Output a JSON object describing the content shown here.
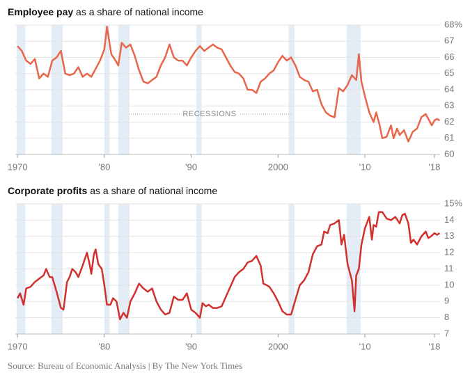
{
  "chart_data": [
    {
      "type": "line",
      "title": "Employee pay",
      "subtitle": "as a share of national income",
      "color": "#e8664a",
      "annotation": "RECESSIONS",
      "x": [
        1970,
        1970.5,
        1971,
        1971.5,
        1972,
        1972.5,
        1973,
        1973.5,
        1974,
        1974.5,
        1975,
        1975.5,
        1976,
        1976.5,
        1977,
        1977.5,
        1978,
        1978.5,
        1979,
        1979.5,
        1980,
        1980.3,
        1980.8,
        1981.3,
        1981.6,
        1982,
        1982.5,
        1983,
        1983.5,
        1984,
        1984.5,
        1985,
        1985.5,
        1986,
        1986.5,
        1987,
        1987.5,
        1988,
        1988.5,
        1989,
        1989.5,
        1990,
        1990.5,
        1991,
        1991.5,
        1992,
        1992.5,
        1993,
        1993.5,
        1994,
        1994.5,
        1995,
        1995.5,
        1996,
        1996.5,
        1997,
        1997.5,
        1998,
        1998.5,
        1999,
        1999.5,
        2000,
        2000.5,
        2001,
        2001.5,
        2002,
        2002.5,
        2003,
        2003.5,
        2004,
        2004.5,
        2005,
        2005.5,
        2006,
        2006.5,
        2007,
        2007.5,
        2008,
        2008.5,
        2009,
        2009.3,
        2009.6,
        2010,
        2010.5,
        2011,
        2011.3,
        2011.7,
        2012,
        2012.5,
        2013,
        2013.3,
        2013.7,
        2014,
        2014.5,
        2015,
        2015.5,
        2016,
        2016.5,
        2017,
        2017.3,
        2017.7,
        2018,
        2018.3,
        2018.6
      ],
      "values": [
        66.7,
        66.4,
        65.8,
        65.6,
        65.9,
        64.7,
        65.0,
        64.8,
        65.8,
        66.0,
        66.4,
        65.0,
        64.9,
        65.0,
        65.4,
        64.8,
        65.0,
        64.8,
        65.3,
        65.8,
        66.5,
        67.9,
        66.2,
        65.8,
        65.5,
        66.9,
        66.6,
        66.8,
        66.1,
        65.2,
        64.5,
        64.4,
        64.6,
        64.8,
        65.5,
        66.0,
        66.8,
        66.0,
        65.8,
        65.8,
        65.5,
        66.0,
        66.4,
        66.7,
        66.4,
        66.6,
        66.8,
        66.6,
        66.5,
        66.0,
        65.5,
        65.1,
        65.0,
        64.7,
        64.0,
        64.0,
        63.8,
        64.5,
        64.7,
        65.0,
        65.2,
        65.7,
        66.1,
        65.8,
        66.0,
        65.5,
        64.8,
        64.6,
        64.5,
        63.9,
        64.0,
        63.1,
        62.6,
        62.4,
        62.3,
        64.1,
        63.9,
        64.3,
        64.9,
        64.6,
        66.2,
        64.5,
        63.6,
        62.6,
        62.0,
        62.6,
        61.8,
        61.0,
        61.1,
        61.8,
        61.0,
        61.6,
        61.2,
        61.5,
        60.8,
        61.4,
        61.6,
        62.3,
        62.5,
        62.2,
        61.8,
        62.1,
        62.2,
        62.1
      ],
      "recessions": [
        [
          1969.9,
          1970.9
        ],
        [
          1973.9,
          1975.2
        ],
        [
          1980.0,
          1980.6
        ],
        [
          1981.6,
          1982.9
        ],
        [
          1990.6,
          1991.2
        ],
        [
          2001.2,
          2001.9
        ],
        [
          2007.9,
          2009.5
        ]
      ],
      "xlim": [
        1969.75,
        2018.65
      ],
      "xticks": [
        {
          "value": 1970,
          "label": "1970"
        },
        {
          "value": 1980,
          "label": "'80"
        },
        {
          "value": 1990,
          "label": "'90"
        },
        {
          "value": 2000,
          "label": "2000"
        },
        {
          "value": 2010,
          "label": "'10"
        },
        {
          "value": 2018,
          "label": "'18"
        }
      ],
      "ylim": [
        60,
        68
      ],
      "yticks": [
        60,
        61,
        62,
        63,
        64,
        65,
        66,
        67,
        {
          "value": 68,
          "label": "68%"
        }
      ],
      "grid": true
    },
    {
      "type": "line",
      "title": "Corporate profits",
      "subtitle": "as a share of national income",
      "color": "#d0312d",
      "x": [
        1970,
        1970.3,
        1970.7,
        1971,
        1971.5,
        1972,
        1972.5,
        1973,
        1973.3,
        1973.7,
        1974,
        1974.5,
        1975,
        1975.3,
        1975.7,
        1976,
        1976.3,
        1976.7,
        1977,
        1977.5,
        1978,
        1978.3,
        1978.5,
        1978.8,
        1979,
        1979.3,
        1979.7,
        1980,
        1980.3,
        1980.7,
        1981,
        1981.4,
        1981.8,
        1982.2,
        1982.6,
        1983,
        1983.5,
        1984,
        1984.5,
        1985,
        1985.5,
        1986,
        1986.5,
        1987,
        1987.5,
        1988,
        1988.5,
        1989,
        1989.5,
        1990,
        1990.5,
        1991,
        1991.3,
        1991.7,
        1992,
        1992.5,
        1993,
        1993.5,
        1994,
        1994.5,
        1995,
        1995.5,
        1996,
        1996.5,
        1997,
        1997.5,
        1998,
        1998.3,
        1998.7,
        1999,
        1999.5,
        2000,
        2000.5,
        2001,
        2001.5,
        2002,
        2002.5,
        2003,
        2003.5,
        2004,
        2004.5,
        2005,
        2005.3,
        2005.7,
        2006,
        2006.5,
        2007,
        2007.3,
        2007.6,
        2008,
        2008.5,
        2008.8,
        2009,
        2009.3,
        2009.6,
        2010,
        2010.5,
        2010.8,
        2011,
        2011.3,
        2011.6,
        2012,
        2012.5,
        2013,
        2013.5,
        2014,
        2014.3,
        2014.6,
        2015,
        2015.3,
        2015.6,
        2016,
        2016.5,
        2017,
        2017.3,
        2017.6,
        2018,
        2018.3,
        2018.6
      ],
      "values": [
        9.2,
        9.5,
        8.8,
        9.8,
        9.9,
        10.2,
        10.4,
        10.6,
        11.0,
        10.5,
        10.5,
        9.6,
        8.6,
        8.5,
        10.2,
        10.5,
        11.0,
        10.8,
        10.5,
        11.2,
        12.0,
        11.3,
        10.7,
        11.9,
        12.2,
        11.3,
        11.0,
        10.0,
        8.8,
        8.8,
        9.2,
        9.0,
        7.9,
        8.3,
        8.0,
        9.0,
        9.5,
        10.1,
        9.8,
        9.6,
        9.8,
        9.0,
        8.5,
        8.2,
        8.3,
        9.3,
        9.1,
        9.1,
        9.5,
        8.5,
        8.3,
        8.0,
        8.9,
        8.7,
        8.8,
        8.6,
        8.6,
        8.7,
        9.3,
        9.9,
        10.5,
        10.8,
        11.0,
        11.4,
        11.5,
        11.8,
        11.2,
        10.1,
        10.0,
        9.9,
        9.5,
        9.0,
        8.4,
        8.2,
        8.2,
        9.1,
        10.0,
        10.3,
        10.8,
        11.9,
        12.4,
        12.5,
        13.3,
        13.2,
        13.7,
        13.8,
        14.0,
        12.5,
        13.1,
        11.3,
        10.3,
        8.4,
        10.6,
        11.0,
        12.5,
        13.5,
        14.2,
        12.8,
        13.7,
        13.6,
        14.5,
        14.5,
        14.1,
        14.0,
        14.2,
        13.8,
        14.3,
        14.4,
        13.8,
        12.6,
        12.8,
        12.5,
        13.0,
        13.3,
        12.9,
        13.0,
        13.2,
        13.1,
        13.2
      ],
      "recessions": [
        [
          1969.9,
          1970.9
        ],
        [
          1973.9,
          1975.2
        ],
        [
          1980.0,
          1980.6
        ],
        [
          1981.6,
          1982.9
        ],
        [
          1990.6,
          1991.2
        ],
        [
          2001.2,
          2001.9
        ],
        [
          2007.9,
          2009.5
        ]
      ],
      "xlim": [
        1969.75,
        2018.65
      ],
      "xticks": [
        {
          "value": 1970,
          "label": "1970"
        },
        {
          "value": 1980,
          "label": "'80"
        },
        {
          "value": 1990,
          "label": "'90"
        },
        {
          "value": 2000,
          "label": "2000"
        },
        {
          "value": 2010,
          "label": "'10"
        },
        {
          "value": 2018,
          "label": "'18"
        }
      ],
      "ylim": [
        7,
        15
      ],
      "yticks": [
        7,
        8,
        9,
        10,
        11,
        12,
        13,
        14,
        {
          "value": 15,
          "label": "15%"
        }
      ],
      "grid": true
    }
  ],
  "source": "Source: Bureau of Economic Analysis | By The New York Times"
}
